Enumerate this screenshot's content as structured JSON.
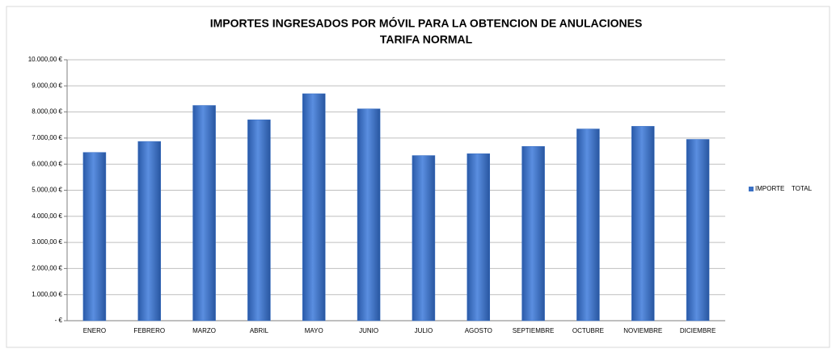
{
  "chart_data": {
    "type": "bar",
    "title": [
      "IMPORTES INGRESADOS POR MÓVIL PARA LA OBTENCION DE ANULACIONES",
      "TARIFA NORMAL"
    ],
    "categories": [
      "ENERO",
      "FEBRERO",
      "MARZO",
      "ABRIL",
      "MAYO",
      "JUNIO",
      "JULIO",
      "AGOSTO",
      "SEPTIEMBRE",
      "OCTUBRE",
      "NOVIEMBRE",
      "DICIEMBRE"
    ],
    "series": [
      {
        "name": "IMPORTE    TOTAL",
        "color": "#3a70c4",
        "values": [
          6450,
          6870,
          8250,
          7700,
          8700,
          8120,
          6330,
          6400,
          6680,
          7350,
          7450,
          6950
        ]
      }
    ],
    "ylim": [
      0,
      10000
    ],
    "yticks": [
      {
        "value": 0,
        "label": "-   €"
      },
      {
        "value": 1000,
        "label": "1.000,00 €"
      },
      {
        "value": 2000,
        "label": "2.000,00 €"
      },
      {
        "value": 3000,
        "label": "3.000,00 €"
      },
      {
        "value": 4000,
        "label": "4.000,00 €"
      },
      {
        "value": 5000,
        "label": "5.000,00 €"
      },
      {
        "value": 6000,
        "label": "6.000,00 €"
      },
      {
        "value": 7000,
        "label": "7.000,00 €"
      },
      {
        "value": 8000,
        "label": "8.000,00 €"
      },
      {
        "value": 9000,
        "label": "9.000,00 €"
      },
      {
        "value": 10000,
        "label": "10.000,00 €"
      }
    ],
    "grid": true,
    "legend": "right"
  }
}
